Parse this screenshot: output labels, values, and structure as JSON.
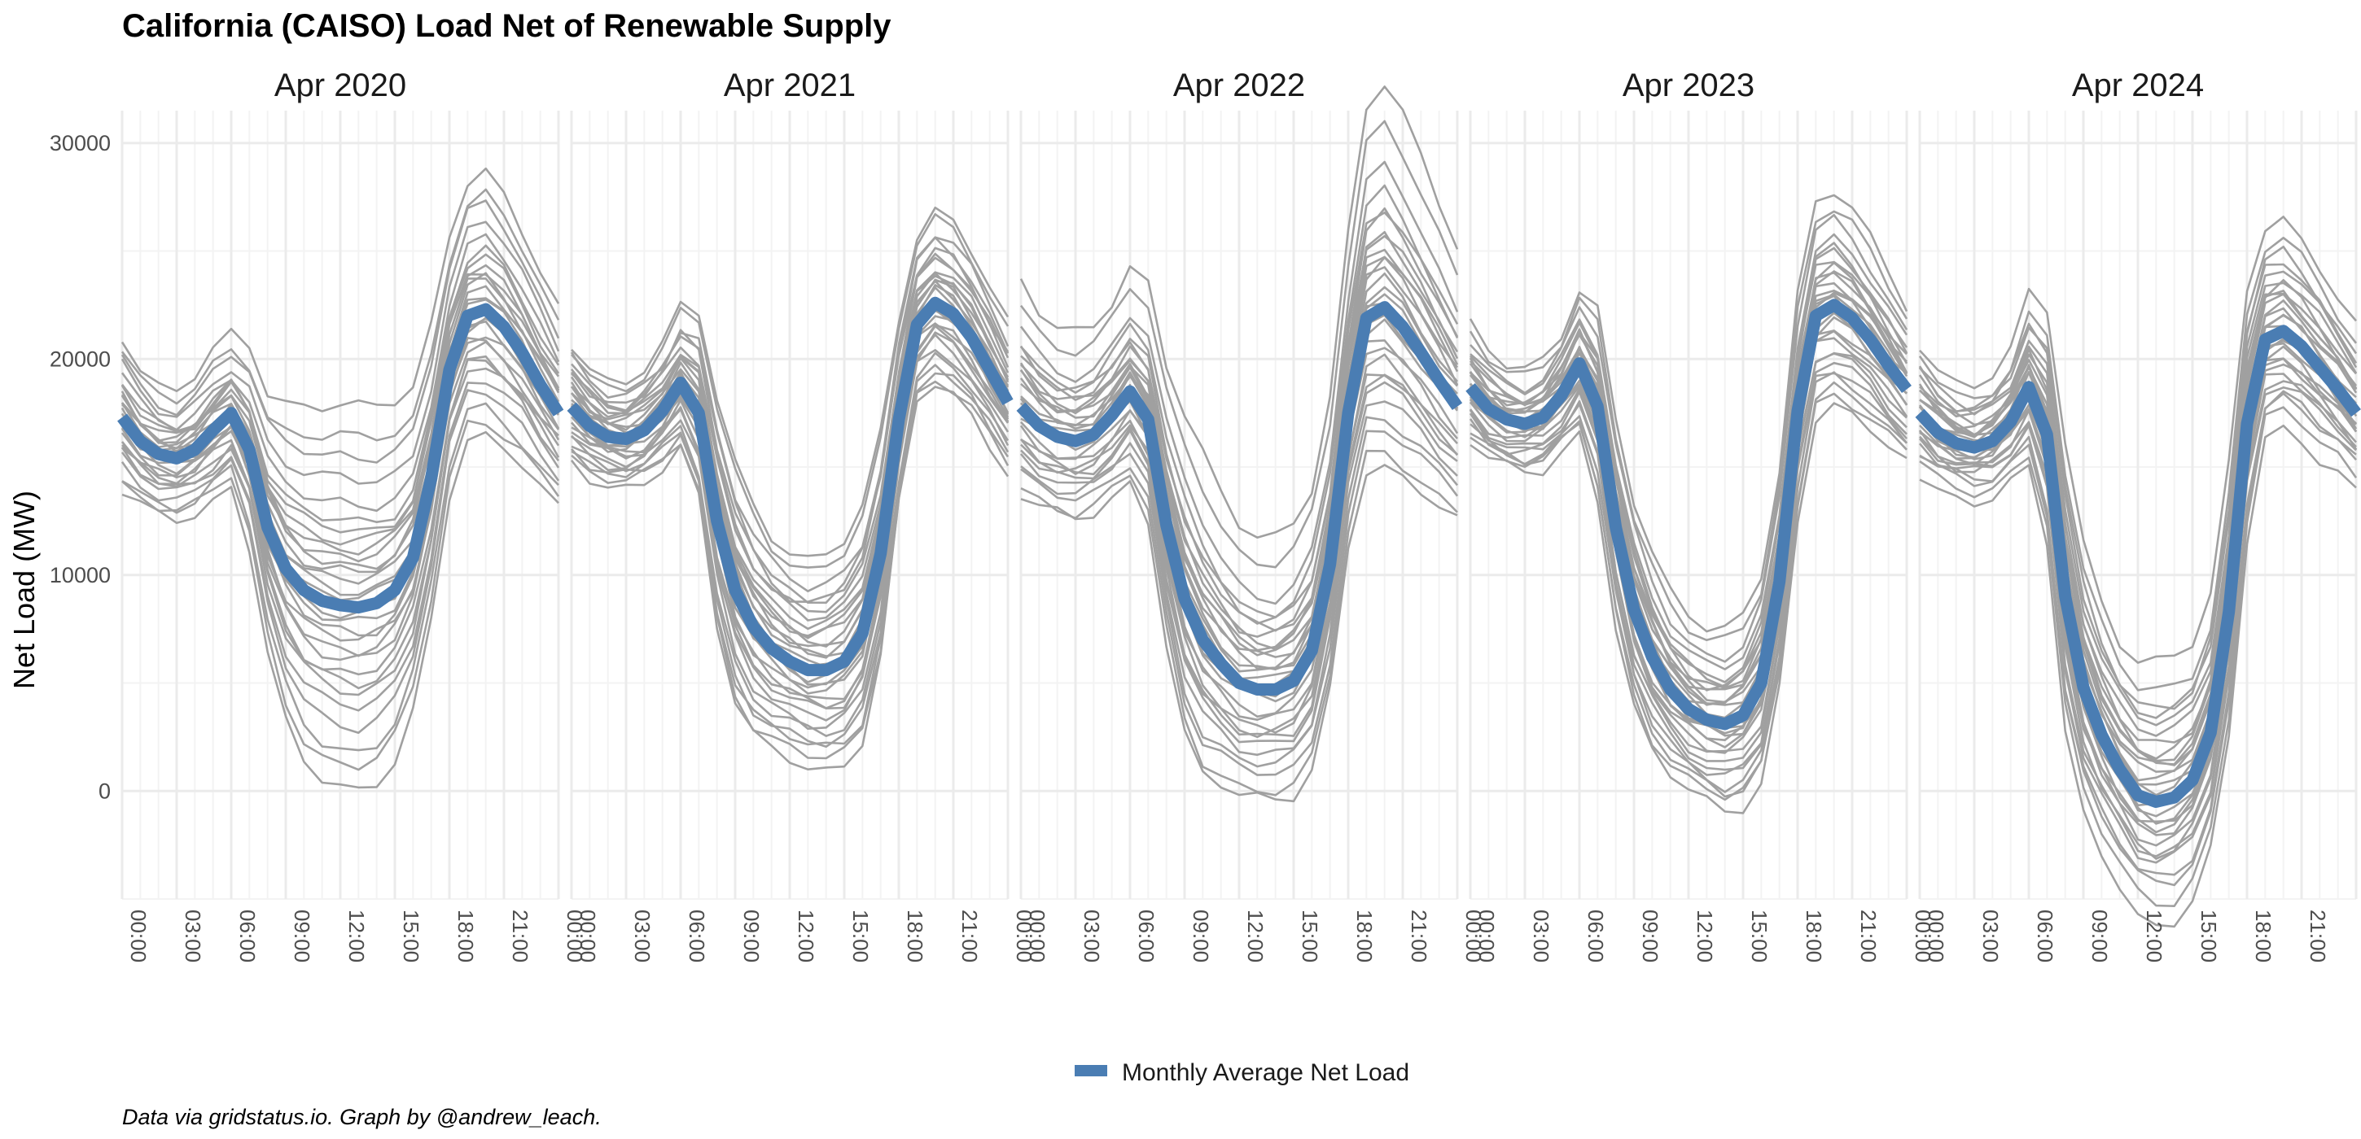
{
  "chart_data": {
    "type": "line",
    "title": "California (CAISO) Load Net of Renewable Supply",
    "ylabel": "Net Load (MW)",
    "caption": "Data via gridstatus.io. Graph by @andrew_leach.",
    "legend": {
      "position": "bottom",
      "label": "Monthly Average Net Load"
    },
    "ylim": [
      -5000,
      31500
    ],
    "yticks": [
      0,
      10000,
      20000,
      30000
    ],
    "ytick_labels": [
      "0",
      "10000",
      "20000",
      "30000"
    ],
    "xlim": [
      0,
      24
    ],
    "xticks": [
      0,
      3,
      6,
      9,
      12,
      15,
      18,
      21,
      24
    ],
    "xtick_labels": [
      "00:00",
      "03:00",
      "06:00",
      "09:00",
      "12:00",
      "15:00",
      "18:00",
      "21:00",
      "00:00"
    ],
    "grid": true,
    "colors": {
      "daily": "#a0a0a0",
      "average": "#4a7db3",
      "grid": "#ebebeb"
    },
    "hours": [
      0,
      1,
      2,
      3,
      4,
      5,
      6,
      7,
      8,
      9,
      10,
      11,
      12,
      13,
      14,
      15,
      16,
      17,
      18,
      19,
      20,
      21,
      22,
      23,
      24
    ],
    "panels": [
      {
        "label": "Apr 2020",
        "average": [
          17300,
          16200,
          15600,
          15400,
          15800,
          16700,
          17500,
          15800,
          12200,
          10300,
          9300,
          8800,
          8600,
          8500,
          8700,
          9300,
          10800,
          14500,
          19500,
          22000,
          22300,
          21500,
          20300,
          18800,
          17500
        ],
        "daily_spread": [
          1600,
          1400,
          1300,
          1300,
          1400,
          1500,
          1500,
          2000,
          2600,
          3200,
          3600,
          3800,
          3900,
          3900,
          3800,
          3600,
          3200,
          2900,
          2600,
          2600,
          2700,
          2600,
          2400,
          2200,
          2000
        ],
        "daily_offsets": [
          1.2,
          -0.5,
          0.3,
          -1.0,
          0.8,
          -0.2,
          0.5,
          -0.8,
          1.5,
          -1.4,
          0.1,
          0.9,
          -0.6,
          2.0,
          -0.3,
          0.6,
          -1.2,
          0.2,
          -0.1,
          1.0,
          -1.7,
          0.4,
          -0.9,
          0.7,
          -0.4,
          0.0,
          2.4,
          -2.2,
          1.8,
          -1.9
        ]
      },
      {
        "label": "Apr 2021",
        "average": [
          17800,
          16900,
          16400,
          16300,
          16700,
          17600,
          18900,
          17500,
          12500,
          9300,
          7600,
          6600,
          6000,
          5600,
          5600,
          6000,
          7300,
          11000,
          17200,
          21600,
          22600,
          22100,
          21000,
          19500,
          18000
        ],
        "daily_spread": [
          1300,
          1200,
          1100,
          1100,
          1200,
          1300,
          1500,
          2000,
          2500,
          2600,
          2500,
          2300,
          2200,
          2200,
          2300,
          2400,
          2500,
          2400,
          2000,
          1800,
          1900,
          1900,
          1800,
          1700,
          1600
        ],
        "daily_offsets": [
          0.6,
          -1.1,
          0.9,
          -0.3,
          1.4,
          -0.8,
          0.2,
          -1.5,
          1.1,
          -0.1,
          0.7,
          -0.6,
          2.1,
          -1.3,
          0.4,
          -0.4,
          1.7,
          -2.0,
          0.0,
          0.3,
          -0.9,
          1.2,
          -0.2,
          0.8,
          -1.6,
          0.5,
          2.3,
          -0.7,
          1.5,
          -1.8
        ]
      },
      {
        "label": "Apr 2022",
        "average": [
          17800,
          16900,
          16400,
          16200,
          16500,
          17400,
          18500,
          17200,
          12300,
          8900,
          7000,
          5900,
          5000,
          4700,
          4700,
          5100,
          6500,
          10500,
          17500,
          21900,
          22400,
          21500,
          20300,
          19000,
          17800
        ],
        "daily_spread": [
          2000,
          1800,
          1700,
          1700,
          1700,
          1800,
          2000,
          2200,
          2600,
          3000,
          3000,
          2700,
          2500,
          2400,
          2400,
          2500,
          2600,
          2700,
          2900,
          3400,
          3600,
          3400,
          3100,
          2800,
          2500
        ],
        "daily_offsets": [
          0.9,
          -0.4,
          1.3,
          -1.2,
          0.2,
          0.6,
          -0.7,
          2.4,
          -1.6,
          0.1,
          1.0,
          -0.9,
          0.4,
          -0.2,
          1.8,
          -1.4,
          0.7,
          -0.5,
          0.3,
          -2.1,
          1.5,
          -0.1,
          0.5,
          -0.8,
          2.9,
          -1.0,
          0.0,
          1.2,
          -1.9,
          0.8
        ]
      },
      {
        "label": "Apr 2023",
        "average": [
          18700,
          17700,
          17200,
          17000,
          17300,
          18300,
          19800,
          17800,
          12200,
          8400,
          6200,
          4700,
          3800,
          3300,
          3100,
          3500,
          5000,
          9700,
          17600,
          22000,
          22500,
          21900,
          20900,
          19700,
          18600
        ],
        "daily_spread": [
          1300,
          1200,
          1100,
          1100,
          1200,
          1300,
          1600,
          2100,
          2300,
          2300,
          2200,
          2000,
          1900,
          1900,
          2000,
          2100,
          2300,
          2400,
          2500,
          2400,
          2400,
          2300,
          2100,
          1900,
          1700
        ],
        "daily_offsets": [
          1.0,
          -0.6,
          0.4,
          -1.1,
          0.7,
          -0.3,
          1.6,
          -1.7,
          0.2,
          0.9,
          -0.8,
          0.0,
          -0.2,
          1.3,
          -1.4,
          0.5,
          2.2,
          -0.9,
          0.3,
          -2.0,
          1.1,
          -0.5,
          0.6,
          -1.2,
          1.9,
          -0.1,
          0.8,
          -1.6,
          0.1,
          -0.4
        ]
      },
      {
        "label": "Apr 2024",
        "average": [
          17500,
          16600,
          16100,
          15900,
          16200,
          17100,
          18700,
          16500,
          9000,
          4800,
          2600,
          1000,
          -200,
          -500,
          -300,
          500,
          2700,
          8300,
          17000,
          20900,
          21300,
          20600,
          19600,
          18600,
          17500
        ],
        "daily_spread": [
          1300,
          1200,
          1100,
          1100,
          1200,
          1300,
          1700,
          2300,
          2900,
          2700,
          2500,
          2400,
          2500,
          2600,
          2600,
          2500,
          2500,
          2700,
          2500,
          2100,
          2100,
          2000,
          1900,
          1700,
          1600
        ],
        "daily_offsets": [
          0.7,
          -0.9,
          1.2,
          -0.2,
          0.4,
          -1.4,
          1.7,
          -0.6,
          0.0,
          0.9,
          -1.1,
          2.0,
          -0.4,
          0.6,
          -1.8,
          0.2,
          1.4,
          -0.7,
          -0.1,
          1.0,
          -2.2,
          0.5,
          -0.3,
          1.6,
          -1.0,
          0.3,
          2.5,
          -1.5,
          0.8,
          -0.5
        ]
      }
    ]
  }
}
